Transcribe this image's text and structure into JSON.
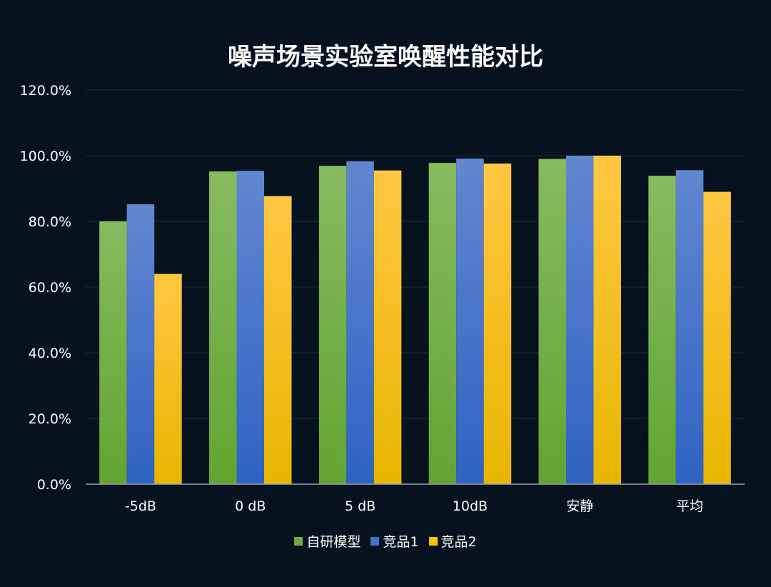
{
  "chart_data": {
    "type": "bar",
    "title": "噪声场景实验室唤醒性能对比",
    "categories": [
      "-5dB",
      "0 dB",
      "5 dB",
      "10dB",
      "安静",
      "平均"
    ],
    "series": [
      {
        "name": "自研模型",
        "color": "#70ad47",
        "values": [
          80.0,
          95.2,
          96.9,
          97.8,
          99.0,
          93.9
        ]
      },
      {
        "name": "竞品1",
        "color": "#4472c4",
        "values": [
          85.2,
          95.4,
          98.3,
          99.1,
          100.0,
          95.6
        ]
      },
      {
        "name": "竞品2",
        "color": "#ffc000",
        "values": [
          64.0,
          87.7,
          95.5,
          97.6,
          100.0,
          89.0
        ]
      }
    ],
    "ylim": [
      0,
      120
    ],
    "yticks": [
      "0.0%",
      "20.0%",
      "40.0%",
      "60.0%",
      "80.0%",
      "100.0%",
      "120.0%"
    ],
    "ytick_values": [
      0,
      20,
      40,
      60,
      80,
      100,
      120
    ],
    "grid": true,
    "legend": "bottom",
    "background": "#06131f"
  }
}
